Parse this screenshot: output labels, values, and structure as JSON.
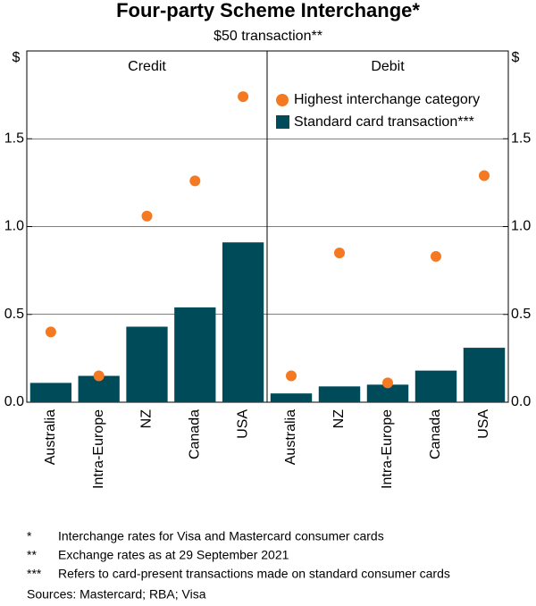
{
  "title": "Four-party Scheme Interchange*",
  "subtitle": "$50 transaction**",
  "notes": [
    {
      "mark": "*",
      "text": "Interchange rates for Visa and Mastercard consumer cards"
    },
    {
      "mark": "**",
      "text": "Exchange rates as at 29 September 2021"
    },
    {
      "mark": "***",
      "text": "Refers to card-present transactions made on standard consumer cards"
    }
  ],
  "sources": "Sources: Mastercard; RBA; Visa",
  "chart_data": [
    {
      "type": "bar",
      "title": "Credit",
      "y_label": "$",
      "axis_side": "left",
      "categories": [
        "Australia",
        "Intra-Europe",
        "NZ",
        "Canada",
        "USA"
      ],
      "series": [
        {
          "color": "#f47920",
          "mark": "dot",
          "values": [
            0.4,
            0.15,
            1.06,
            1.26,
            1.74
          ]
        },
        {
          "color": "#004b5a",
          "mark": "bar",
          "values": [
            0.11,
            0.15,
            0.43,
            0.54,
            0.91
          ]
        }
      ],
      "ylim": [
        0,
        2.0
      ],
      "yticks": [
        {
          "value": 0,
          "label": "0.0"
        },
        0.5,
        {
          "value": 1,
          "label": "1.0"
        },
        1.5
      ],
      "grid": true
    },
    {
      "type": "bar",
      "title": "Debit",
      "y_label": "$",
      "axis_side": "right",
      "legend": "top-right",
      "categories": [
        "Australia",
        "NZ",
        "Intra-Europe",
        "Canada",
        "USA"
      ],
      "series": [
        {
          "name": "Highest interchange category",
          "color": "#f47920",
          "mark": "dot",
          "values": [
            0.15,
            0.85,
            0.11,
            0.83,
            1.29
          ]
        },
        {
          "name": "Standard card transaction***",
          "color": "#004b5a",
          "mark": "bar",
          "values": [
            0.05,
            0.09,
            0.1,
            0.18,
            0.31
          ]
        }
      ],
      "ylim": [
        0,
        2.0
      ],
      "yticks": [
        {
          "value": 0,
          "label": "0.0"
        },
        0.5,
        {
          "value": 1,
          "label": "1.0"
        },
        1.5
      ],
      "grid": true
    }
  ]
}
